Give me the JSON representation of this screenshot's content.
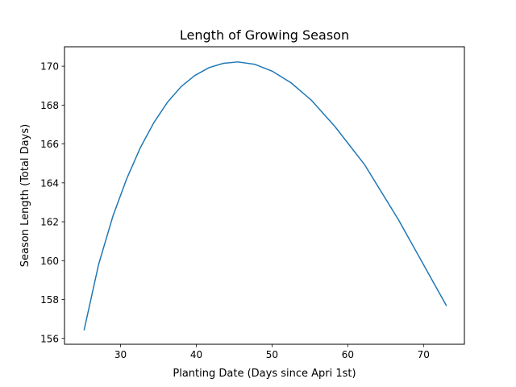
{
  "chart_data": {
    "type": "line",
    "title": "Length of Growing Season",
    "xlabel": "Planting Date (Days since Apri 1st)",
    "ylabel": "Season Length (Total Days)",
    "xlim": [
      22.6,
      75.4
    ],
    "ylim": [
      155.7,
      171.0
    ],
    "xticks": [
      30,
      40,
      50,
      60,
      70
    ],
    "yticks": [
      156,
      158,
      160,
      162,
      164,
      166,
      168,
      170
    ],
    "grid": false,
    "series": [
      {
        "color": "#1f77b4",
        "x": [
          25.2,
          27.1,
          29.0,
          30.8,
          32.6,
          34.4,
          36.2,
          38.0,
          39.8,
          41.7,
          43.6,
          45.5,
          47.7,
          50.0,
          52.5,
          55.2,
          58.3,
          62.2,
          66.7,
          73.0
        ],
        "y": [
          156.45,
          159.8,
          162.3,
          164.2,
          165.8,
          167.1,
          168.15,
          168.95,
          169.52,
          169.93,
          170.15,
          170.22,
          170.1,
          169.75,
          169.15,
          168.25,
          166.9,
          164.95,
          162.1,
          157.7
        ]
      }
    ]
  }
}
